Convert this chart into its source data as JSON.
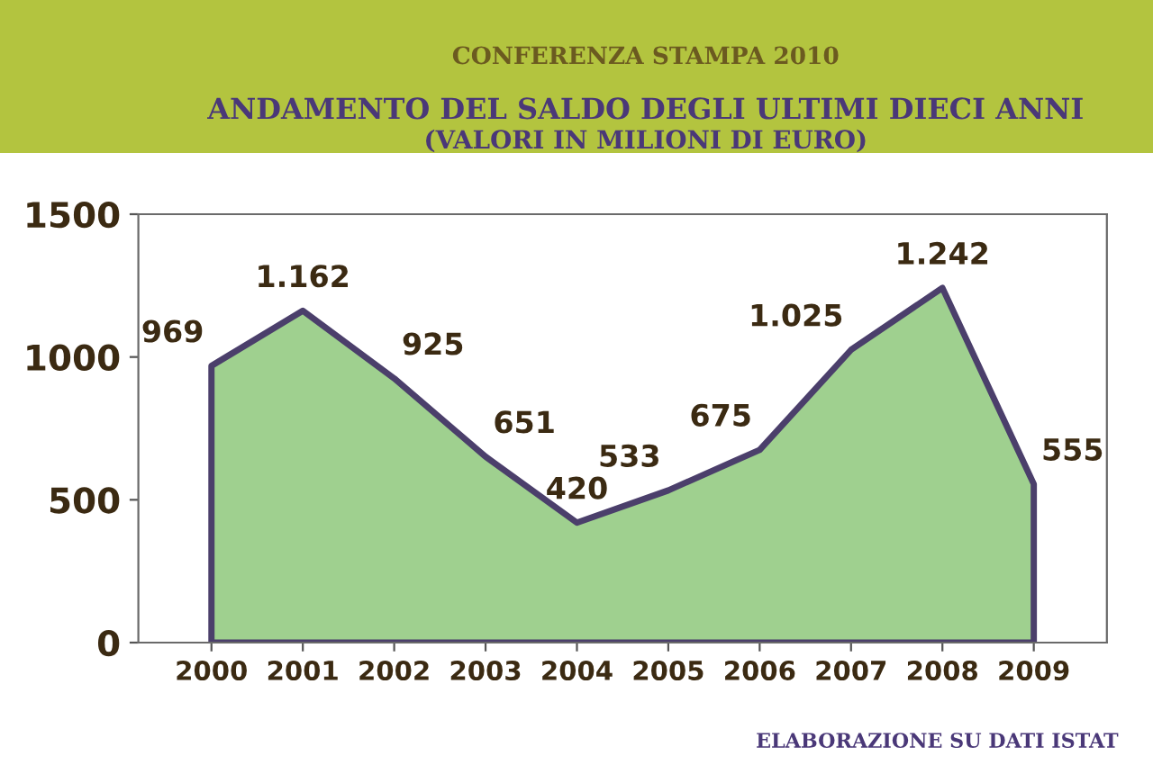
{
  "chart_data": {
    "type": "area",
    "title": "ANDAMENTO DEL SALDO DEGLI ULTIMI DIECI ANNI",
    "subtitle": "(VALORI IN MILIONI DI EURO)",
    "categories": [
      "2000",
      "2001",
      "2002",
      "2003",
      "2004",
      "2005",
      "2006",
      "2007",
      "2008",
      "2009"
    ],
    "values": [
      969,
      1162,
      925,
      651,
      420,
      533,
      675,
      1025,
      1242,
      555
    ],
    "value_labels": [
      "969",
      "1.162",
      "925",
      "651",
      "420",
      "533",
      "675",
      "1.025",
      "1.242",
      "555"
    ],
    "color": "#9fd08f",
    "ylim": [
      0,
      1500
    ],
    "yticks": [
      0,
      500,
      1000,
      1500
    ],
    "annotations": [
      "CONFERENZA STAMPA 2010",
      "ELABORAZIONE SU DATI ISTAT"
    ]
  }
}
